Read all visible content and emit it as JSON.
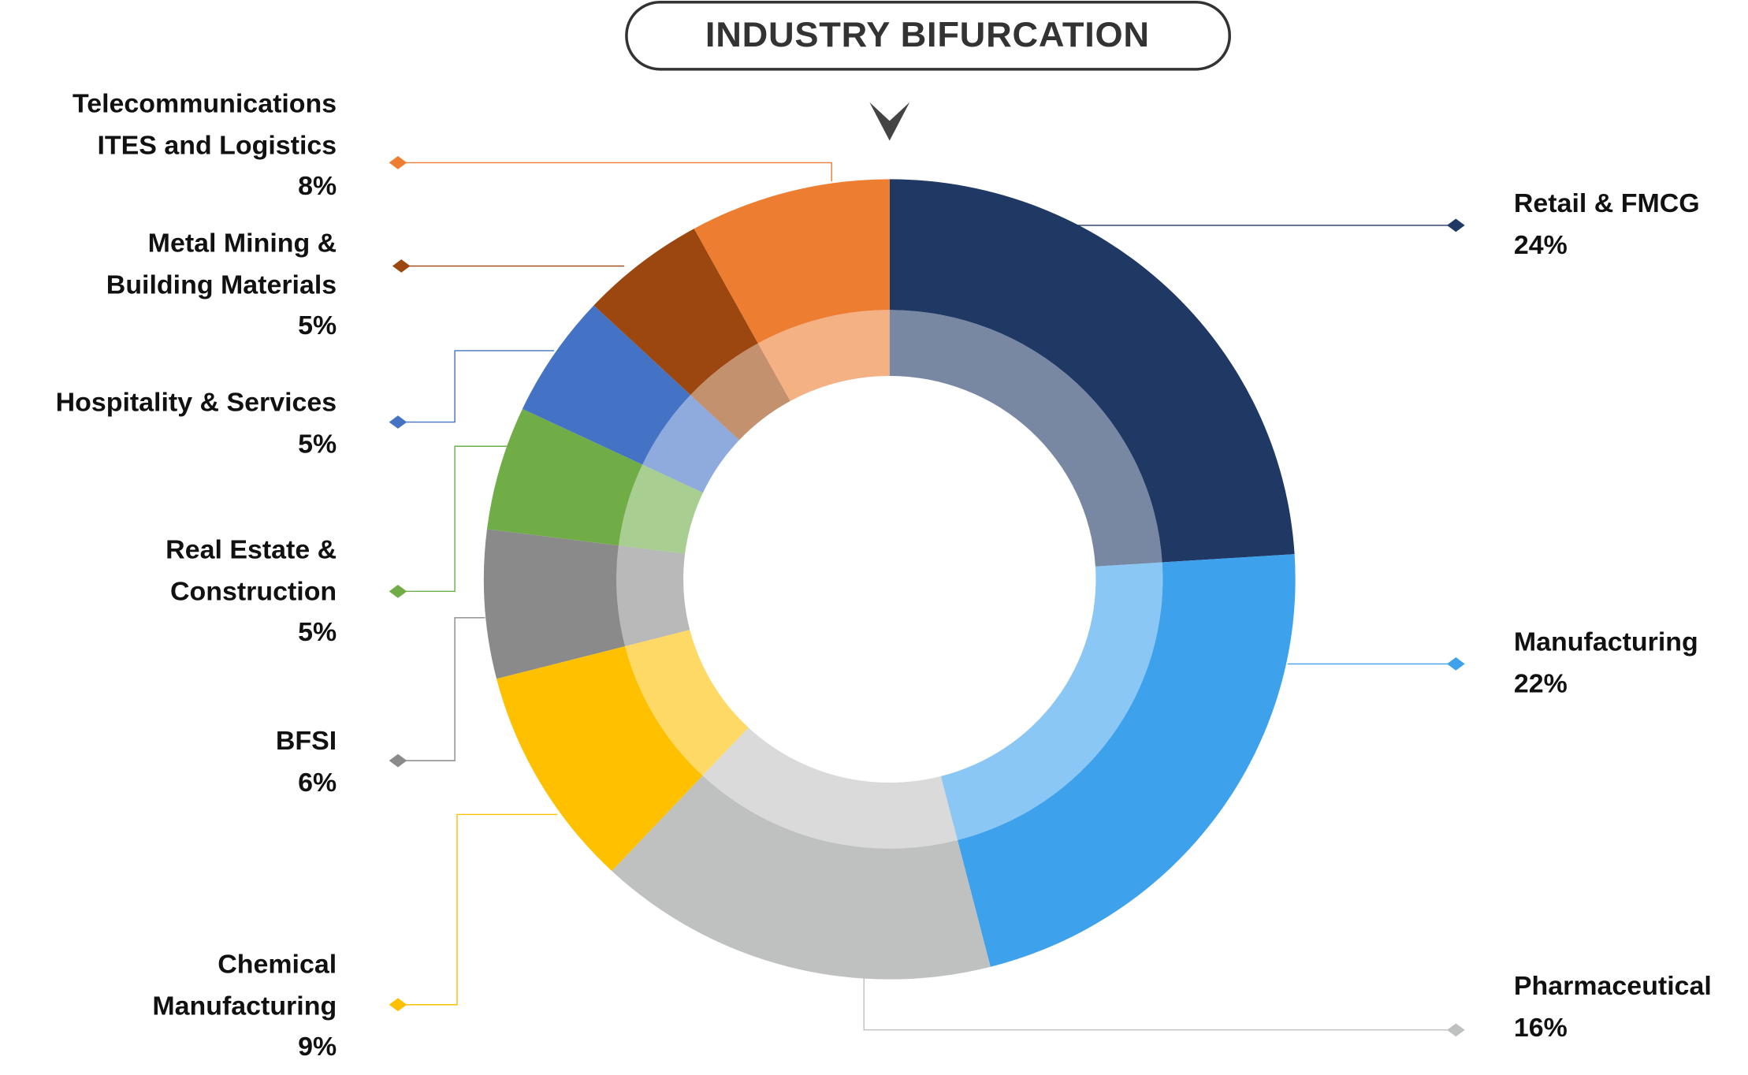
{
  "chart_data": {
    "type": "pie",
    "title": "INDUSTRY BIFURCATION",
    "categories": [
      "Retail & FMCG",
      "Manufacturing",
      "Pharmaceutical",
      "Chemical\nManufacturing",
      "BFSI",
      "Real Estate &\nConstruction",
      "Hospitality & Services",
      "Metal Mining &\nBuilding Materials",
      "Telecommunications\nITES and Logistics"
    ],
    "values": [
      24,
      22,
      16,
      9,
      6,
      5,
      5,
      5,
      8
    ],
    "value_labels": [
      "24%",
      "22%",
      "16%",
      "9%",
      "6%",
      "5%",
      "5%",
      "5%",
      "8%"
    ],
    "colors": [
      "#1f3864",
      "#3da1ec",
      "#bfc1c0",
      "#ffc000",
      "#8a8a8a",
      "#70ad47",
      "#4472c4",
      "#9c470f",
      "#ed7d31"
    ]
  }
}
